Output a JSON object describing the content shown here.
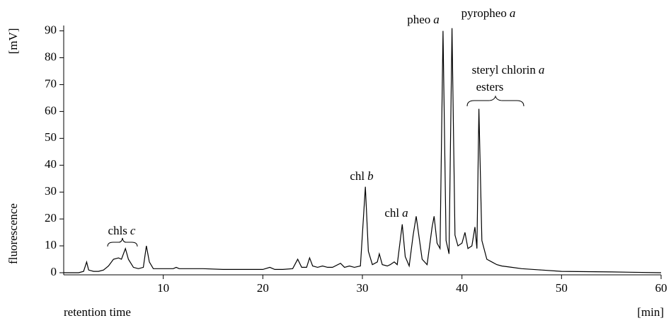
{
  "chart_data": {
    "type": "line",
    "x_label": "retention time",
    "x_unit": "[min]",
    "y_label": "fluorescence",
    "y_unit": "[mV]",
    "xlim": [
      0,
      60
    ],
    "ylim": [
      0,
      92
    ],
    "xticks": [
      10,
      20,
      30,
      40,
      50,
      60
    ],
    "yticks": [
      0,
      10,
      20,
      30,
      40,
      50,
      60,
      70,
      80,
      90
    ],
    "color": "#000000",
    "annotations": [
      [
        "chls",
        "c"
      ],
      [
        "chl",
        "b"
      ],
      [
        "chl",
        "a"
      ],
      [
        "pheo",
        "a"
      ],
      [
        "pyropheo",
        "a"
      ],
      [
        "steryl chlorin",
        "a",
        "esters"
      ]
    ],
    "x": [
      0,
      1.5,
      2,
      2.3,
      2.5,
      3,
      3.5,
      4,
      4.5,
      5,
      5.5,
      5.8,
      6.2,
      6.5,
      7,
      7.5,
      8,
      8.3,
      8.6,
      9,
      10,
      11,
      11.3,
      11.6,
      12,
      14,
      16,
      18,
      20,
      20.7,
      21.2,
      22,
      23,
      23.5,
      23.9,
      24.4,
      24.7,
      25,
      25.5,
      26,
      26.5,
      27,
      27.8,
      28.2,
      28.7,
      29.2,
      29.8,
      30.3,
      30.6,
      31,
      31.5,
      31.7,
      32,
      32.5,
      32.8,
      33.2,
      33.5,
      34,
      34.3,
      34.7,
      35.1,
      35.4,
      35.7,
      36,
      36.5,
      37,
      37.2,
      37.5,
      37.8,
      38.1,
      38.4,
      38.7,
      39,
      39.3,
      39.6,
      40,
      40.3,
      40.6,
      41,
      41.3,
      41.5,
      41.7,
      42,
      42.5,
      43,
      43.5,
      44,
      45,
      46,
      48,
      50,
      55,
      60
    ],
    "y": [
      0,
      0,
      0.5,
      4,
      1,
      0.5,
      0.5,
      1,
      2.5,
      5,
      5.5,
      5,
      9,
      5,
      2,
      1.5,
      2,
      10,
      4,
      1.5,
      1.5,
      1.5,
      2,
      1.5,
      1.5,
      1.5,
      1.2,
      1.2,
      1.2,
      2,
      1.2,
      1.2,
      1.5,
      5,
      2,
      2,
      5.5,
      2.5,
      2,
      2.5,
      2,
      2,
      3.5,
      2,
      2.5,
      2,
      2.5,
      32,
      8,
      3,
      4,
      7,
      3,
      2.5,
      3,
      4,
      3,
      18,
      6,
      2.5,
      14,
      21,
      13,
      5,
      3,
      17,
      21,
      11,
      9,
      90,
      12,
      7,
      91,
      14,
      10,
      11,
      15,
      9,
      10,
      17,
      9,
      61,
      12,
      5,
      4,
      3,
      2.5,
      2,
      1.5,
      1,
      0.5,
      0.3,
      0
    ]
  }
}
